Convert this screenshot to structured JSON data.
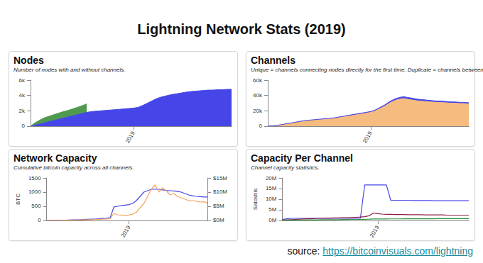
{
  "title": "Lightning Network Stats (2019)",
  "source": {
    "label": "source:",
    "url": "https://bitcoinvisuals.com/lightning"
  },
  "chart_data": [
    {
      "type": "area",
      "title": "Nodes",
      "subtitle": "Number of nodes with and without channels.",
      "stacked": true,
      "grid": false,
      "categories": [
        null,
        null,
        null,
        null,
        null,
        null,
        null,
        null,
        null,
        null,
        null,
        null,
        null,
        null,
        null,
        null,
        null,
        null,
        null,
        null,
        null,
        null,
        "2019",
        null,
        null,
        null,
        null,
        null,
        null,
        null,
        null,
        null,
        null,
        null,
        null,
        null,
        null,
        null,
        null,
        null,
        null,
        null,
        null,
        null
      ],
      "ylim": [
        0,
        6000
      ],
      "yticks": [
        0,
        {
          "value": 2000,
          "label": "2k"
        },
        {
          "value": 4000,
          "label": "4k"
        },
        {
          "value": 6000,
          "label": "6k"
        }
      ],
      "series": [
        {
          "color": "#4646e8",
          "values": [
            0,
            150,
            300,
            450,
            600,
            750,
            900,
            1050,
            1200,
            1350,
            1500,
            1650,
            1800,
            1900,
            1950,
            2000,
            2050,
            2100,
            2150,
            2200,
            2250,
            2300,
            2350,
            2450,
            2700,
            3000,
            3300,
            3600,
            3800,
            3950,
            4100,
            4200,
            4300,
            4400,
            4500,
            4550,
            4600,
            4650,
            4700,
            4700,
            4750,
            4750,
            4800,
            4800
          ]
        },
        {
          "color": "#4f9a4f",
          "values": [
            0,
            300,
            500,
            650,
            700,
            750,
            800,
            850,
            850,
            900,
            950,
            1000,
            1100,
            null,
            null,
            null,
            null,
            null,
            null,
            null,
            null,
            null,
            null,
            null,
            null,
            null,
            null,
            null,
            null,
            null,
            null,
            null,
            null,
            null,
            null,
            null,
            null,
            null,
            null,
            null,
            null,
            null,
            null,
            null
          ]
        }
      ]
    },
    {
      "type": "area",
      "title": "Channels",
      "subtitle": "Unique = channels connecting nodes directly for the first time. Duplicate = channels between nodes that are already connected.",
      "stacked": true,
      "grid": false,
      "categories": [
        null,
        null,
        null,
        null,
        null,
        null,
        null,
        null,
        null,
        null,
        null,
        null,
        null,
        null,
        null,
        null,
        null,
        null,
        null,
        null,
        null,
        null,
        "2019",
        null,
        null,
        null,
        null,
        null,
        null,
        null,
        null,
        null,
        null,
        null,
        null,
        null,
        null,
        null,
        null,
        null,
        null,
        null,
        null,
        null
      ],
      "ylim": [
        0,
        60000
      ],
      "yticks": [
        0,
        {
          "value": 20000,
          "label": "20k"
        },
        {
          "value": 40000,
          "label": "40k"
        },
        {
          "value": 60000,
          "label": "60k"
        }
      ],
      "series": [
        {
          "color": "#f6bb7e",
          "values": [
            0,
            500,
            1000,
            2000,
            3000,
            4000,
            5000,
            6000,
            7000,
            7500,
            8000,
            8500,
            9000,
            9500,
            10000,
            11000,
            12000,
            13000,
            14000,
            15000,
            16000,
            17000,
            18000,
            20000,
            23000,
            26000,
            30000,
            33000,
            35000,
            36000,
            35000,
            34000,
            33000,
            32500,
            32000,
            31500,
            31000,
            31000,
            30500,
            30000,
            30000,
            29500,
            29500,
            29000
          ]
        },
        {
          "color": "#4646e8",
          "values": [
            0,
            50,
            100,
            150,
            200,
            250,
            300,
            350,
            400,
            450,
            500,
            550,
            600,
            650,
            700,
            750,
            800,
            850,
            900,
            950,
            1000,
            1050,
            1100,
            1200,
            1400,
            1600,
            1800,
            2000,
            2200,
            2400,
            2400,
            2300,
            2200,
            2100,
            2000,
            1900,
            1800,
            1800,
            1700,
            1700,
            1600,
            1600,
            1500,
            1500
          ]
        }
      ]
    },
    {
      "type": "line",
      "title": "Network Capacity",
      "subtitle": "Cumulative bitcoin capacity across all channels.",
      "grid": false,
      "y_label": "BTC",
      "categories": [
        null,
        null,
        null,
        null,
        null,
        null,
        null,
        null,
        null,
        null,
        null,
        null,
        null,
        null,
        null,
        null,
        null,
        null,
        null,
        null,
        null,
        null,
        "2019",
        null,
        null,
        null,
        null,
        null,
        null,
        null,
        null,
        null,
        null,
        null,
        null,
        null,
        null,
        null,
        null,
        null,
        null,
        null,
        null,
        null
      ],
      "ylim": [
        0,
        1500
      ],
      "yticks": [
        0,
        500,
        1000,
        1500
      ],
      "y2lim": [
        0,
        15000000
      ],
      "y2ticks": [
        {
          "value": 0,
          "label": "$0M"
        },
        {
          "value": 5000000,
          "label": "$5M"
        },
        {
          "value": 10000000,
          "label": "$10M"
        },
        {
          "value": 15000000,
          "label": "$15M"
        }
      ],
      "series": [
        {
          "color": "#4646e8",
          "values": [
            1,
            2,
            3,
            5,
            8,
            10,
            15,
            20,
            25,
            30,
            35,
            40,
            45,
            50,
            60,
            70,
            80,
            100,
            480,
            500,
            520,
            540,
            560,
            600,
            700,
            850,
            1000,
            1050,
            1100,
            1100,
            1100,
            1080,
            1060,
            1050,
            1040,
            1020,
            1000,
            950,
            900,
            870,
            850,
            840,
            830,
            830
          ]
        },
        {
          "color": "#f2a65e",
          "axis": "y2",
          "values": [
            11000,
            20000,
            30000,
            45000,
            70000,
            80000,
            110000,
            150000,
            180000,
            200000,
            220000,
            250000,
            280000,
            310000,
            380000,
            440000,
            500000,
            600000,
            2500000,
            2000000,
            1900000,
            1800000,
            1900000,
            2200000,
            2900000,
            4500000,
            6000000,
            8500000,
            11000000,
            12500000,
            10000000,
            11500000,
            10500000,
            9000000,
            9500000,
            8500000,
            8000000,
            7500000,
            7000000,
            7000000,
            6800000,
            6500000,
            6600000,
            6300000
          ]
        }
      ]
    },
    {
      "type": "line",
      "title": "Capacity Per Channel",
      "subtitle": "Channel capacity statistics.",
      "grid": false,
      "y_label": "Satoshis",
      "categories": [
        null,
        null,
        null,
        null,
        null,
        null,
        null,
        null,
        null,
        null,
        null,
        null,
        null,
        null,
        null,
        null,
        null,
        null,
        null,
        null,
        null,
        null,
        "2019",
        null,
        null,
        null,
        null,
        null,
        null,
        null,
        null,
        null,
        null,
        null,
        null,
        null,
        null,
        null,
        null,
        null,
        null,
        null,
        null,
        null
      ],
      "ylim": [
        0,
        20000000
      ],
      "yticks": [
        {
          "value": 0,
          "label": "0M"
        },
        {
          "value": 5000000,
          "label": "5M"
        },
        {
          "value": 10000000,
          "label": "10M"
        },
        {
          "value": 15000000,
          "label": "15M"
        },
        {
          "value": 20000000,
          "label": "20M"
        }
      ],
      "series": [
        {
          "color": "#4646e8",
          "values": [
            500000,
            800000,
            1000000,
            1000000,
            1000000,
            1000000,
            1000000,
            1000000,
            1000000,
            1000000,
            1000000,
            1000000,
            1000000,
            1000000,
            1000000,
            1000000,
            1000000,
            1000000,
            1000000,
            16700000,
            16700000,
            16700000,
            16700000,
            16700000,
            16700000,
            9500000,
            9500000,
            9500000,
            9500000,
            9500000,
            9400000,
            9400000,
            9400000,
            9400000,
            9400000,
            9300000,
            9300000,
            9300000,
            9300000,
            9300000,
            9300000,
            9300000,
            9300000,
            9300000
          ]
        },
        {
          "color": "#8b2040",
          "values": [
            200000,
            300000,
            400000,
            500000,
            600000,
            700000,
            800000,
            900000,
            1000000,
            1000000,
            1100000,
            1100000,
            1200000,
            1200000,
            1300000,
            1300000,
            1400000,
            1500000,
            1600000,
            1800000,
            2200000,
            3500000,
            3200000,
            3000000,
            2900000,
            2900000,
            2800000,
            2800000,
            2800000,
            2700000,
            2700000,
            2700000,
            2700000,
            2600000,
            2600000,
            2600000,
            2600000,
            2600000,
            2500000,
            2500000,
            2500000,
            2500000,
            2500000,
            2500000
          ]
        },
        {
          "color": "#2f8f3f",
          "values": [
            100000,
            150000,
            200000,
            200000,
            250000,
            250000,
            300000,
            300000,
            300000,
            350000,
            350000,
            400000,
            400000,
            400000,
            450000,
            450000,
            500000,
            500000,
            500000,
            550000,
            600000,
            700000,
            700000,
            700000,
            700000,
            750000,
            750000,
            750000,
            800000,
            800000,
            800000,
            800000,
            800000,
            800000,
            800000,
            800000,
            850000,
            850000,
            850000,
            850000,
            850000,
            850000,
            850000,
            850000
          ]
        }
      ]
    }
  ]
}
